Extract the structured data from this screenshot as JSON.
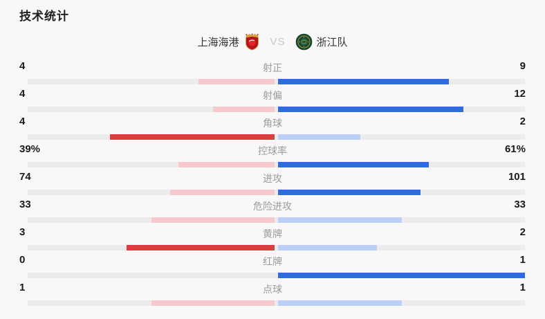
{
  "page": {
    "title": "技术统计"
  },
  "header": {
    "home_team": "上海海港",
    "away_team": "浙江队",
    "vs_label": "VS",
    "home_logo_icon": "shanghai-port-crest",
    "away_logo_icon": "zhejiang-fc-crest"
  },
  "colors": {
    "home_strong": "#e23b3f",
    "home_light": "#f7c8cc",
    "away_strong": "#2e6ae6",
    "away_light": "#bdcff7",
    "track": "#ececec",
    "label_gray": "#9b9b9b",
    "value_dark": "#1a1a1a"
  },
  "stats": {
    "rows": [
      {
        "label": "射正",
        "home": "4",
        "away": "9",
        "home_num": 4,
        "away_num": 9
      },
      {
        "label": "射偏",
        "home": "4",
        "away": "12",
        "home_num": 4,
        "away_num": 12
      },
      {
        "label": "角球",
        "home": "4",
        "away": "2",
        "home_num": 4,
        "away_num": 2
      },
      {
        "label": "控球率",
        "home": "39%",
        "away": "61%",
        "home_num": 39,
        "away_num": 61
      },
      {
        "label": "进攻",
        "home": "74",
        "away": "101",
        "home_num": 74,
        "away_num": 101
      },
      {
        "label": "危险进攻",
        "home": "33",
        "away": "33",
        "home_num": 33,
        "away_num": 33
      },
      {
        "label": "黄牌",
        "home": "3",
        "away": "2",
        "home_num": 3,
        "away_num": 2
      },
      {
        "label": "红牌",
        "home": "0",
        "away": "1",
        "home_num": 0,
        "away_num": 1
      },
      {
        "label": "点球",
        "home": "1",
        "away": "1",
        "home_num": 1,
        "away_num": 1
      }
    ]
  },
  "chart_data": {
    "type": "bar",
    "subtype": "diverging-horizontal-duel",
    "title": "技术统计",
    "categories": [
      "射正",
      "射偏",
      "角球",
      "控球率",
      "进攻",
      "危险进攻",
      "黄牌",
      "红牌",
      "点球"
    ],
    "series": [
      {
        "name": "上海海港",
        "values": [
          4,
          4,
          4,
          39,
          74,
          33,
          3,
          0,
          1
        ]
      },
      {
        "name": "浙江队",
        "values": [
          9,
          12,
          2,
          61,
          101,
          33,
          2,
          1,
          1
        ]
      }
    ],
    "value_labels": {
      "上海海港": [
        "4",
        "4",
        "4",
        "39%",
        "74",
        "33",
        "3",
        "0",
        "1"
      ],
      "浙江队": [
        "9",
        "12",
        "2",
        "61%",
        "101",
        "33",
        "2",
        "1",
        "1"
      ]
    },
    "layout_hints": {
      "bars_grow_from_center": true,
      "bar_length_rule": "each side proportional to value/(home+away) of half-track width",
      "winner_side_uses_strong_color": true,
      "tie_or_loser_uses_light_color": true,
      "grid": false,
      "legend_position": "top-center as team names with crests"
    }
  }
}
